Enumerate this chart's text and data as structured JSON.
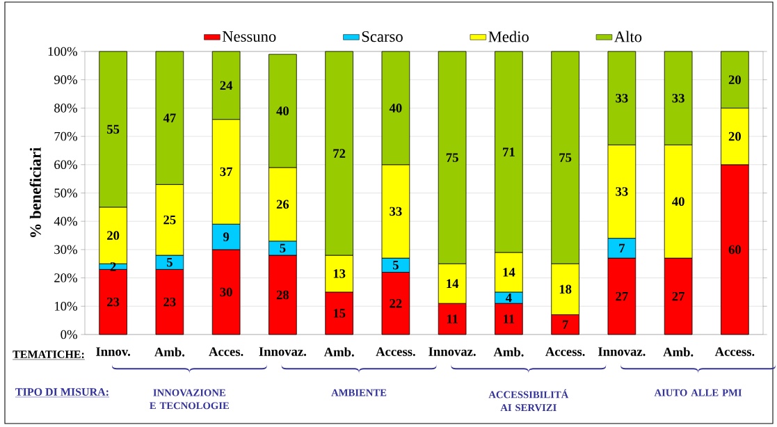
{
  "chart_data": {
    "type": "bar",
    "stacked": true,
    "ylabel": "% beneficiari",
    "categories": [
      "Innov.",
      "Amb.",
      "Acces.",
      "Innovaz.",
      "Amb.",
      "Access.",
      "Innovaz.",
      "Amb.",
      "Access.",
      "Innovaz.",
      "Amb.",
      "Access."
    ],
    "series": [
      {
        "name": "Nessuno",
        "color": "#ff0000",
        "values": [
          23,
          23,
          30,
          28,
          15,
          22,
          11,
          11,
          7,
          27,
          27,
          60
        ]
      },
      {
        "name": "Scarso",
        "color": "#00ccff",
        "values": [
          2,
          5,
          9,
          5,
          null,
          5,
          null,
          4,
          null,
          7,
          null,
          null
        ]
      },
      {
        "name": "Medio",
        "color": "#ffff00",
        "values": [
          20,
          25,
          37,
          26,
          13,
          33,
          14,
          14,
          18,
          33,
          40,
          20
        ]
      },
      {
        "name": "Alto",
        "color": "#99cc00",
        "values": [
          55,
          47,
          24,
          40,
          72,
          40,
          75,
          71,
          75,
          33,
          33,
          20
        ]
      }
    ],
    "ylim": [
      0,
      100
    ],
    "yticks": [
      {
        "value": 0,
        "label": "0%"
      },
      {
        "value": 10,
        "label": "10%"
      },
      {
        "value": 20,
        "label": "20%"
      },
      {
        "value": 30,
        "label": "30%"
      },
      {
        "value": 40,
        "label": "40%"
      },
      {
        "value": 50,
        "label": "50%"
      },
      {
        "value": 60,
        "label": "60%"
      },
      {
        "value": 70,
        "label": "70%"
      },
      {
        "value": 80,
        "label": "80%"
      },
      {
        "value": 90,
        "label": "90%"
      },
      {
        "value": 100,
        "label": "100%"
      }
    ],
    "grid": "y",
    "legend": "top",
    "data_labels": true,
    "annotations": [
      "TEMATICHE:",
      "TIPO DI MISURA:",
      "INNOVAZIONE E TECNOLOGIE",
      "AMBIENTE",
      "ACCESSIBILITÁ AI SERVIZI",
      "AIUTO ALLE PMI"
    ]
  }
}
